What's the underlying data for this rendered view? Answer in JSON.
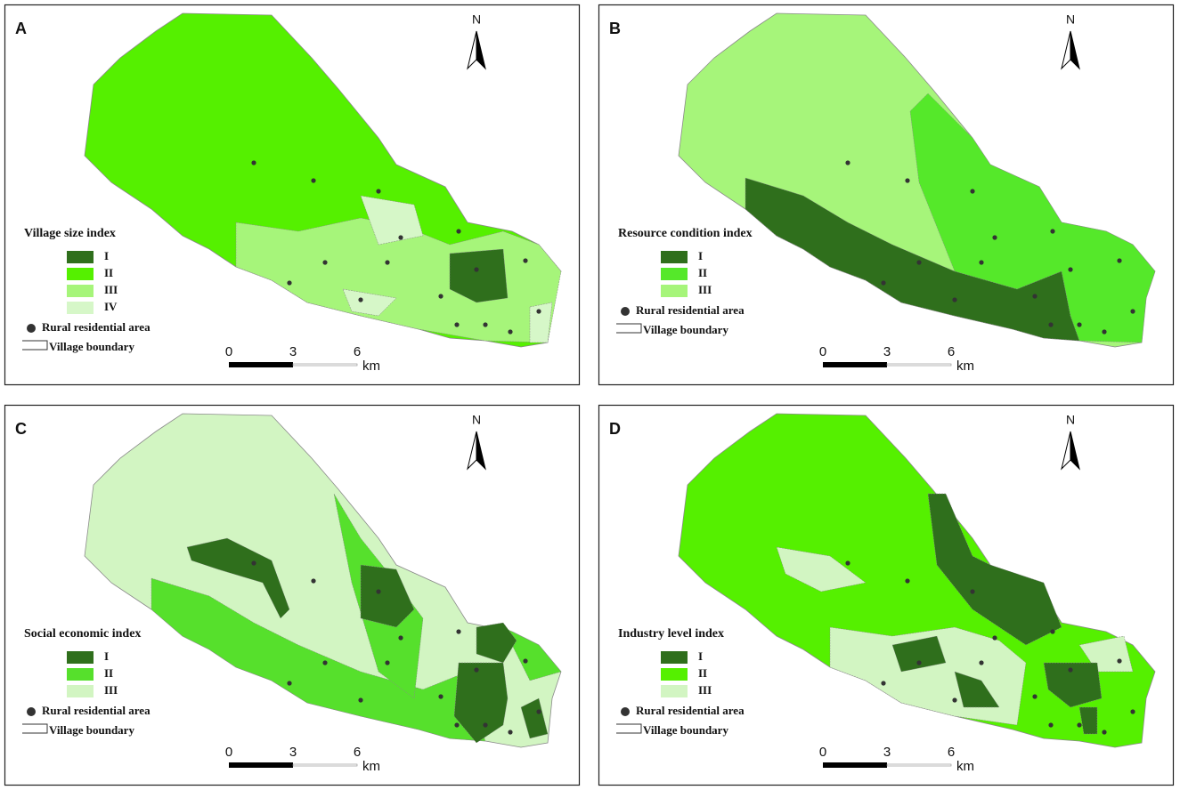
{
  "panels": [
    {
      "letter": "A",
      "north": "N",
      "legend": {
        "title": "Village size index",
        "classes": [
          "I",
          "II",
          "III",
          "IV"
        ],
        "colors": [
          "#2f6f1c",
          "#55f000",
          "#a6f57a",
          "#d6f7c8"
        ],
        "points": "Rural residential area",
        "boundary": "Village boundary"
      },
      "scale": {
        "labels": [
          "0",
          "3",
          "6"
        ],
        "unit": "km"
      }
    },
    {
      "letter": "B",
      "north": "N",
      "legend": {
        "title": "Resource condition index",
        "classes": [
          "I",
          "II",
          "III"
        ],
        "colors": [
          "#2f6f1c",
          "#55e82a",
          "#a6f57a"
        ],
        "points": "Rural residential area",
        "boundary": "Village boundary"
      },
      "scale": {
        "labels": [
          "0",
          "3",
          "6"
        ],
        "unit": "km"
      }
    },
    {
      "letter": "C",
      "north": "N",
      "legend": {
        "title": "Social economic index",
        "classes": [
          "I",
          "II",
          "III"
        ],
        "colors": [
          "#2f6f1c",
          "#56e02c",
          "#d2f5c2"
        ],
        "points": "Rural residential area",
        "boundary": "Village boundary"
      },
      "scale": {
        "labels": [
          "0",
          "3",
          "6"
        ],
        "unit": "km"
      }
    },
    {
      "letter": "D",
      "north": "N",
      "legend": {
        "title": "Industry level index",
        "classes": [
          "I",
          "II",
          "III"
        ],
        "colors": [
          "#2f6f1c",
          "#55f000",
          "#d2f5c2"
        ],
        "points": "Rural residential area",
        "boundary": "Village boundary"
      },
      "scale": {
        "labels": [
          "0",
          "3",
          "6"
        ],
        "unit": "km"
      }
    }
  ]
}
